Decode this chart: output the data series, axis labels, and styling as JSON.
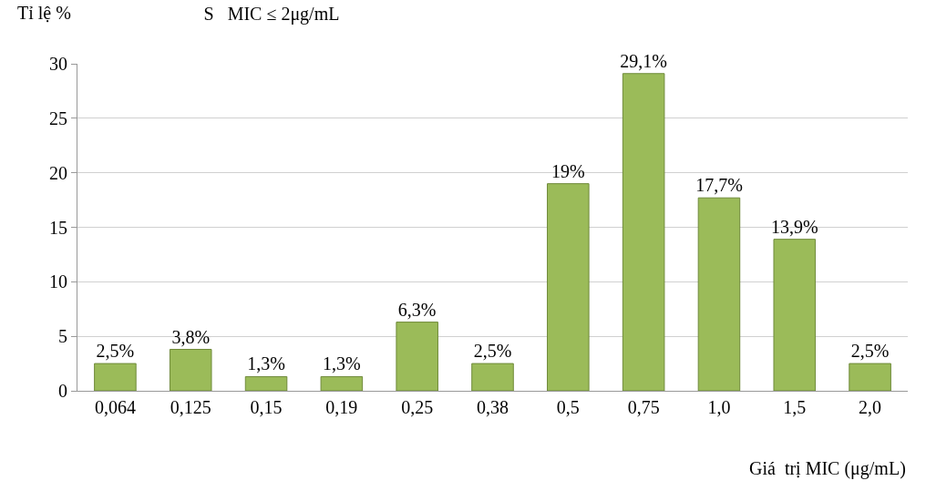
{
  "chart_data": {
    "type": "bar",
    "title": "S   MIC ≤ 2μg/mL",
    "xlabel": "Giá  trị MIC (μg/mL)",
    "ylabel": "Tỉ lệ %",
    "categories": [
      "0,064",
      "0,125",
      "0,15",
      "0,19",
      "0,25",
      "0,38",
      "0,5",
      "0,75",
      "1,0",
      "1,5",
      "2,0"
    ],
    "values": [
      2.5,
      3.8,
      1.3,
      1.3,
      6.3,
      2.5,
      19,
      29.1,
      17.7,
      13.9,
      2.5
    ],
    "value_labels": [
      "2,5%",
      "3,8%",
      "1,3%",
      "1,3%",
      "6,3%",
      "2,5%",
      "19%",
      "29,1%",
      "17,7%",
      "13,9%",
      "2,5%"
    ],
    "color": "#9bbb59",
    "ylim": [
      0,
      30
    ],
    "yticks": [
      0,
      5,
      10,
      15,
      20,
      25,
      30
    ],
    "grid": "y"
  }
}
